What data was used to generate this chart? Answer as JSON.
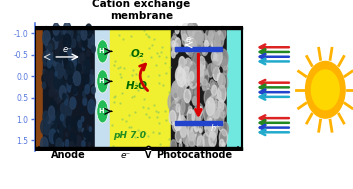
{
  "title": "Cation exchange\nmembrane",
  "title_fontsize": 7.5,
  "bg_color": "#ffffff",
  "fig_width": 3.53,
  "fig_height": 1.89,
  "y_ticks": [
    -1.0,
    -0.5,
    0.0,
    0.5,
    1.0,
    1.5
  ],
  "anode_label": "Anode",
  "cathode_label": "Photocathode",
  "colors": {
    "anode_dark": "#1a2535",
    "anode_brown": "#7a4010",
    "membrane": "#c5dff0",
    "middle_yellow": "#f0f030",
    "cathode_cyan": "#70e8e0",
    "green_circle": "#22bb55",
    "axis_blue": "#5577dd"
  }
}
